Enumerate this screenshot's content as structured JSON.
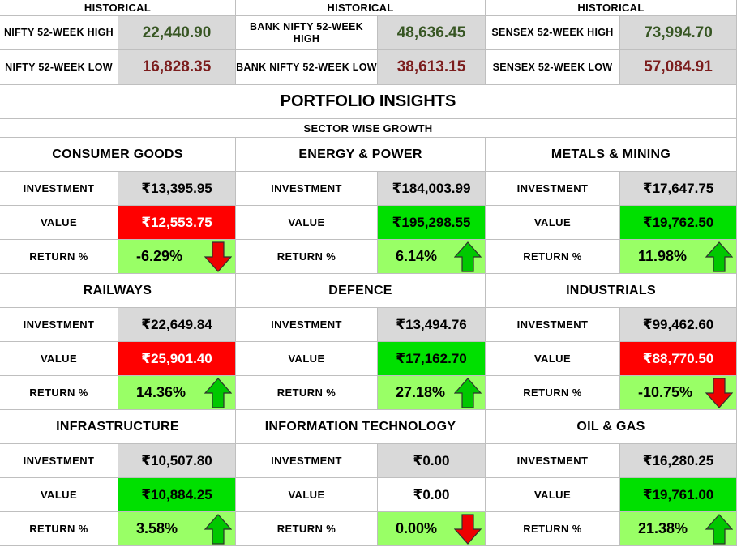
{
  "historical": [
    {
      "header": "HISTORICAL",
      "high_label": "NIFTY 52-WEEK HIGH",
      "high_value": "22,440.90",
      "low_label": "NIFTY 52-WEEK LOW",
      "low_value": "16,828.35"
    },
    {
      "header": "HISTORICAL",
      "high_label": "BANK NIFTY 52-WEEK HIGH",
      "high_value": "48,636.45",
      "low_label": "BANK NIFTY 52-WEEK LOW",
      "low_value": "38,613.15"
    },
    {
      "header": "HISTORICAL",
      "high_label": "SENSEX 52-WEEK HIGH",
      "high_value": "73,994.70",
      "low_label": "SENSEX 52-WEEK LOW",
      "low_value": "57,084.91"
    }
  ],
  "title": "PORTFOLIO INSIGHTS",
  "subtitle": "SECTOR WISE GROWTH",
  "labels": {
    "investment": "INVESTMENT",
    "value": "VALUE",
    "return": "RETURN %"
  },
  "colors": {
    "red": "#ff0000",
    "green": "#00e000",
    "light_green": "#99ff66",
    "grey": "#d9d9d9",
    "high_text": "#375623",
    "low_text": "#7b1c1c"
  },
  "sectors": [
    {
      "name": "CONSUMER GOODS",
      "investment": "₹13,395.95",
      "value": "₹12,553.75",
      "value_status": "red",
      "return": "-6.29%",
      "arrow": "down"
    },
    {
      "name": "ENERGY & POWER",
      "investment": "₹184,003.99",
      "value": "₹195,298.55",
      "value_status": "green",
      "return": "6.14%",
      "arrow": "up"
    },
    {
      "name": "METALS & MINING",
      "investment": "₹17,647.75",
      "value": "₹19,762.50",
      "value_status": "green",
      "return": "11.98%",
      "arrow": "up"
    },
    {
      "name": "RAILWAYS",
      "investment": "₹22,649.84",
      "value": "₹25,901.40",
      "value_status": "red",
      "return": "14.36%",
      "arrow": "up"
    },
    {
      "name": "DEFENCE",
      "investment": "₹13,494.76",
      "value": "₹17,162.70",
      "value_status": "green",
      "return": "27.18%",
      "arrow": "up"
    },
    {
      "name": "INDUSTRIALS",
      "investment": "₹99,462.60",
      "value": "₹88,770.50",
      "value_status": "red",
      "return": "-10.75%",
      "arrow": "down"
    },
    {
      "name": "INFRASTRUCTURE",
      "investment": "₹10,507.80",
      "value": "₹10,884.25",
      "value_status": "green",
      "return": "3.58%",
      "arrow": "up"
    },
    {
      "name": "INFORMATION TECHNOLOGY",
      "investment": "₹0.00",
      "value": "₹0.00",
      "value_status": "none",
      "return": "0.00%",
      "arrow": "down"
    },
    {
      "name": "OIL & GAS",
      "investment": "₹16,280.25",
      "value": "₹19,761.00",
      "value_status": "green",
      "return": "21.38%",
      "arrow": "up"
    }
  ]
}
